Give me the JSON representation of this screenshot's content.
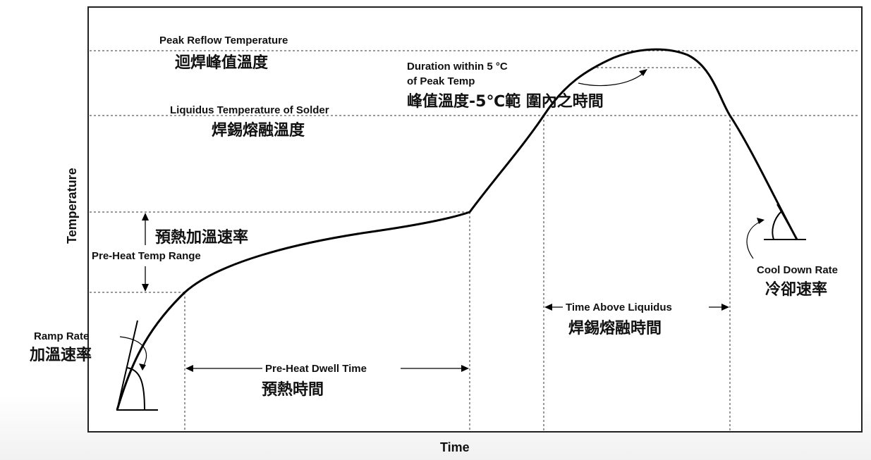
{
  "axes": {
    "x_label": "Time",
    "y_label": "Temperature"
  },
  "labels": {
    "peak_reflow_en": "Peak Reflow Temperature",
    "peak_reflow_zh": "迴焊峰值溫度",
    "duration_en_1": "Duration within 5 °C",
    "duration_en_2": "of Peak Temp",
    "duration_zh": "峰值溫度-5℃範 圍內之時間",
    "liquidus_en": "Liquidus Temperature of Solder",
    "liquidus_zh": "焊錫熔融溫度",
    "preheat_rate_zh": "預熱加溫速率",
    "preheat_range_en": "Pre-Heat Temp Range",
    "ramp_rate_en": "Ramp Rate",
    "ramp_rate_zh": "加溫速率",
    "preheat_dwell_en": "Pre-Heat Dwell Time",
    "preheat_dwell_zh": "預熱時間",
    "time_above_en": "Time Above Liquidus",
    "time_above_zh": "焊錫熔融時間",
    "cool_down_en": "Cool Down Rate",
    "cool_down_zh": "冷卻速率"
  }
}
